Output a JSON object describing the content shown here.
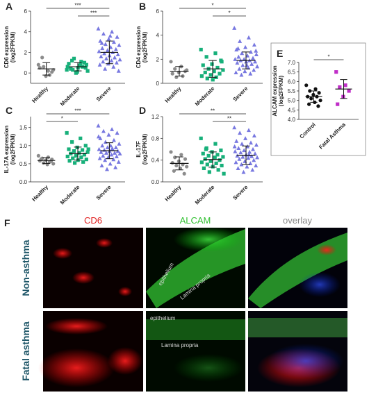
{
  "chart_data": [
    {
      "type": "scatter",
      "panel": "A",
      "ylabel": [
        "CD6 expression",
        "(log2FPKM)"
      ],
      "categories": [
        "Healthy",
        "Moderate",
        "Severe"
      ],
      "series": [
        {
          "color": "#8c8c8c",
          "marker": "circle",
          "values": [
            0.8,
            0.2,
            1.5,
            0.1,
            -0.3,
            0.5,
            -0.2,
            0.6,
            0.3
          ],
          "mean": 0.4,
          "sd": 0.6
        },
        {
          "color": "#17b07a",
          "marker": "square",
          "values": [
            0.3,
            0.8,
            1.2,
            0.5,
            0.1,
            0.9,
            0.6,
            1.4,
            0.2,
            0.7,
            0.4,
            1.0,
            0.0,
            0.6,
            1.1,
            0.3,
            0.8,
            0.5
          ],
          "mean": 0.6,
          "sd": 0.4
        },
        {
          "color": "#7878e0",
          "marker": "triangle",
          "values": [
            4.3,
            4.0,
            3.8,
            3.5,
            3.3,
            3.1,
            3.0,
            2.8,
            2.7,
            2.5,
            2.4,
            2.3,
            2.2,
            2.1,
            2.0,
            1.9,
            1.8,
            1.7,
            1.6,
            1.5,
            1.4,
            1.3,
            1.2,
            1.1,
            1.0,
            0.9,
            0.8,
            0.6,
            0.4,
            0.2,
            3.6,
            2.9
          ],
          "mean": 2.0,
          "sd": 1.1
        }
      ],
      "ylim": [
        -1,
        6
      ],
      "yticks": [
        0,
        2,
        4,
        6
      ],
      "comparisons": [
        {
          "groups": [
            0,
            2
          ],
          "label": "***"
        },
        {
          "groups": [
            1,
            2
          ],
          "label": "***"
        }
      ]
    },
    {
      "type": "scatter",
      "panel": "B",
      "ylabel": [
        "CD4 expression",
        "(log2FPKM)"
      ],
      "categories": [
        "Healthy",
        "Moderate",
        "Severe"
      ],
      "series": [
        {
          "color": "#8c8c8c",
          "marker": "circle",
          "values": [
            1.8,
            1.4,
            1.2,
            1.0,
            0.9,
            0.8,
            0.6,
            0.5,
            1.1
          ],
          "mean": 1.0,
          "sd": 0.4
        },
        {
          "color": "#17b07a",
          "marker": "square",
          "values": [
            2.8,
            2.5,
            2.2,
            1.9,
            1.6,
            1.5,
            1.3,
            1.2,
            1.1,
            1.0,
            0.9,
            0.8,
            0.7,
            0.6,
            0.5,
            0.4,
            1.8,
            0.3
          ],
          "mean": 1.2,
          "sd": 0.7
        },
        {
          "color": "#7878e0",
          "marker": "triangle",
          "values": [
            4.6,
            3.8,
            3.5,
            3.2,
            3.0,
            2.8,
            2.6,
            2.5,
            2.4,
            2.3,
            2.2,
            2.1,
            2.0,
            2.0,
            1.9,
            1.9,
            1.8,
            1.8,
            1.7,
            1.6,
            1.5,
            1.4,
            1.3,
            1.2,
            1.1,
            1.0,
            0.9,
            0.8,
            0.7,
            2.7,
            1.5,
            2.9
          ],
          "mean": 1.9,
          "sd": 0.7
        }
      ],
      "ylim": [
        0,
        6
      ],
      "yticks": [
        0,
        2,
        4,
        6
      ],
      "comparisons": [
        {
          "groups": [
            0,
            2
          ],
          "label": "*"
        },
        {
          "groups": [
            1,
            2
          ],
          "label": "*"
        }
      ]
    },
    {
      "type": "scatter",
      "panel": "C",
      "ylabel": [
        "IL-17A expression",
        "(log2FPKM)"
      ],
      "categories": [
        "Healthy",
        "Moderate",
        "Severe"
      ],
      "series": [
        {
          "color": "#8c8c8c",
          "marker": "circle",
          "values": [
            0.72,
            0.68,
            0.65,
            0.62,
            0.6,
            0.58,
            0.55,
            0.52,
            0.5,
            0.48,
            0.63,
            0.57
          ],
          "mean": 0.59,
          "sd": 0.08
        },
        {
          "color": "#17b07a",
          "marker": "square",
          "values": [
            1.35,
            1.2,
            1.1,
            1.0,
            0.95,
            0.9,
            0.88,
            0.85,
            0.82,
            0.8,
            0.78,
            0.75,
            0.72,
            0.7,
            0.68,
            0.65,
            0.62,
            0.6,
            0.58,
            0.55,
            0.52,
            0.9
          ],
          "mean": 0.78,
          "sd": 0.18
        },
        {
          "color": "#7878e0",
          "marker": "triangle",
          "values": [
            1.55,
            1.45,
            1.4,
            1.35,
            1.3,
            1.2,
            1.15,
            1.1,
            1.05,
            1.0,
            1.0,
            0.95,
            0.95,
            0.9,
            0.9,
            0.88,
            0.85,
            0.85,
            0.82,
            0.8,
            0.8,
            0.78,
            0.75,
            0.72,
            0.7,
            0.68,
            0.65,
            0.62,
            0.6,
            0.55,
            0.5,
            0.45,
            0.4,
            0.35,
            1.25,
            0.92
          ],
          "mean": 0.86,
          "sd": 0.22
        }
      ],
      "ylim": [
        0,
        1.8
      ],
      "yticks": [
        {
          "value": 0,
          "label": "0.0"
        },
        0.5,
        {
          "value": 1,
          "label": "1.0"
        },
        1.5
      ],
      "comparisons": [
        {
          "groups": [
            0,
            2
          ],
          "label": "***"
        },
        {
          "groups": [
            0,
            1
          ],
          "label": "*"
        }
      ]
    },
    {
      "type": "scatter",
      "panel": "D",
      "ylabel": [
        "IL-17F",
        "(log2FPKM)"
      ],
      "categories": [
        "Healthy",
        "Moderate",
        "Severe"
      ],
      "series": [
        {
          "color": "#8c8c8c",
          "marker": "circle",
          "values": [
            0.55,
            0.5,
            0.45,
            0.42,
            0.38,
            0.35,
            0.32,
            0.3,
            0.28,
            0.25,
            0.2,
            0.15
          ],
          "mean": 0.34,
          "sd": 0.12
        },
        {
          "color": "#17b07a",
          "marker": "square",
          "values": [
            0.8,
            0.7,
            0.62,
            0.58,
            0.55,
            0.52,
            0.5,
            0.48,
            0.46,
            0.44,
            0.42,
            0.4,
            0.38,
            0.36,
            0.34,
            0.32,
            0.3,
            0.28,
            0.25,
            0.22,
            0.18,
            0.15,
            0.45,
            0.6
          ],
          "mean": 0.41,
          "sd": 0.14
        },
        {
          "color": "#7878e0",
          "marker": "triangle",
          "values": [
            1.0,
            0.95,
            0.9,
            0.85,
            0.8,
            0.75,
            0.72,
            0.7,
            0.68,
            0.65,
            0.62,
            0.6,
            0.58,
            0.56,
            0.55,
            0.54,
            0.52,
            0.5,
            0.48,
            0.47,
            0.46,
            0.45,
            0.44,
            0.42,
            0.4,
            0.38,
            0.36,
            0.34,
            0.32,
            0.3,
            0.28,
            0.25,
            0.22,
            0.18,
            0.65,
            0.5
          ],
          "mean": 0.49,
          "sd": 0.17
        }
      ],
      "ylim": [
        0,
        1.2
      ],
      "yticks": [
        {
          "value": 0,
          "label": "0.0"
        },
        0.4,
        0.8,
        1.2
      ],
      "comparisons": [
        {
          "groups": [
            0,
            2
          ],
          "label": "**"
        },
        {
          "groups": [
            1,
            2
          ],
          "label": "**"
        }
      ]
    },
    {
      "type": "scatter",
      "panel": "E",
      "ylabel": [
        "ALCAM expression",
        "(log2FPKM)"
      ],
      "categories": [
        "Control",
        "Fatal Asthma"
      ],
      "series": [
        {
          "color": "#111111",
          "marker": "circle",
          "values": [
            5.8,
            5.6,
            5.5,
            5.4,
            5.3,
            5.2,
            5.2,
            5.1,
            5.0,
            4.9,
            4.8,
            4.7
          ],
          "mean": 5.2,
          "sd": 0.3
        },
        {
          "color": "#c02ec8",
          "marker": "square",
          "values": [
            6.5,
            5.8,
            5.7,
            5.5,
            5.2,
            4.8
          ],
          "mean": 5.6,
          "sd": 0.5
        }
      ],
      "ylim": [
        4,
        7
      ],
      "yticks": [
        {
          "value": 4,
          "label": "4.0"
        },
        4.5,
        {
          "value": 5,
          "label": "5.0"
        },
        5.5,
        {
          "value": 6,
          "label": "6.0"
        },
        6.5,
        {
          "value": 7,
          "label": "7.0"
        }
      ],
      "comparisons": [
        {
          "groups": [
            0,
            1
          ],
          "label": "*"
        }
      ]
    }
  ],
  "figure_f": {
    "label": "F",
    "columns": [
      "CD6",
      "ALCAM",
      "overlay"
    ],
    "rows": [
      "Non-asthma",
      "Fatal asthma"
    ],
    "annotations": [
      "epithelium",
      "Lamina propria",
      "epithelium",
      "Lamina propria"
    ]
  }
}
